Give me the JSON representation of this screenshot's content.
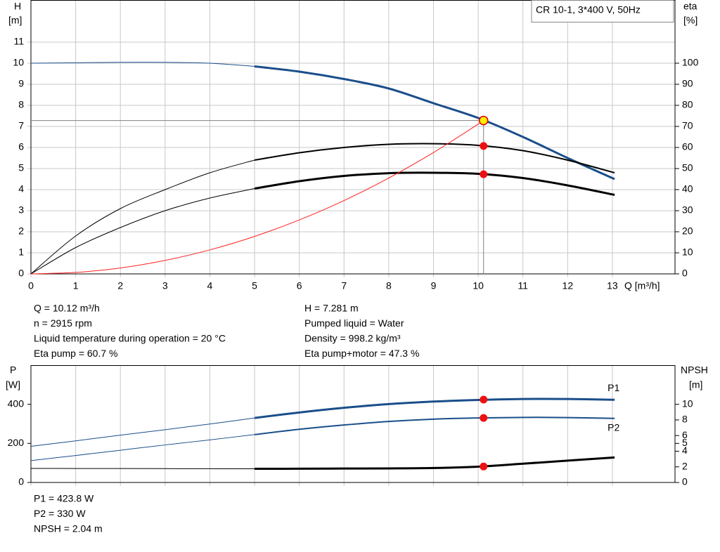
{
  "chart_data": [
    {
      "type": "line",
      "y_label": "H",
      "y_unit": "[m]",
      "y2_label": "eta",
      "y2_unit": "[%]",
      "x_label": "Q [m³/h]",
      "box_text": "CR 10-1, 3*400 V, 50Hz",
      "xlim": [
        0,
        14.4
      ],
      "xticks": [
        0,
        1,
        2,
        3,
        4,
        5,
        6,
        7,
        8,
        9,
        10,
        11,
        12,
        13
      ],
      "ylim": [
        0,
        13
      ],
      "yticks": [
        0,
        1,
        2,
        3,
        4,
        5,
        6,
        7,
        8,
        9,
        10,
        11
      ],
      "y2lim": [
        0,
        130
      ],
      "y2ticks": [
        0,
        10,
        20,
        30,
        40,
        50,
        60,
        70,
        80,
        90,
        100
      ],
      "grid": true,
      "x": [
        0,
        1,
        2,
        3,
        4,
        5,
        6,
        7,
        8,
        9,
        10,
        11,
        12,
        13.05
      ],
      "series": [
        {
          "color": "#1a4e8a",
          "width": 3,
          "values": [
            10.0,
            10.02,
            10.04,
            10.04,
            10.0,
            9.85,
            9.6,
            9.25,
            8.8,
            8.1,
            7.4,
            6.5,
            5.5,
            4.5
          ]
        },
        {
          "color": "#000000",
          "width": 2,
          "axis": "y2",
          "values": [
            0,
            18,
            31,
            40,
            48,
            54,
            57.5,
            60,
            61.5,
            61.8,
            61,
            58.5,
            54,
            48
          ]
        },
        {
          "color": "#000000",
          "width": 3,
          "axis": "y2",
          "values": [
            0,
            12.5,
            22,
            30,
            36,
            40.5,
            44,
            46.5,
            47.8,
            48,
            47.5,
            45.5,
            42,
            37.5
          ]
        },
        {
          "color": "#ff2020",
          "width": 1,
          "x": [
            0,
            1,
            2,
            3,
            4,
            5,
            6,
            7,
            8,
            9,
            10,
            10.12
          ],
          "values": [
            0,
            0.07,
            0.28,
            0.64,
            1.14,
            1.78,
            2.56,
            3.48,
            4.55,
            5.76,
            7.11,
            7.281
          ]
        }
      ],
      "points": [
        {
          "x": 10.12,
          "y": 7.281,
          "color": "#ffee00"
        },
        {
          "x": 10.12,
          "y": 60.7,
          "axis": "y2",
          "color": "#ee1111"
        },
        {
          "x": 10.12,
          "y": 47.3,
          "axis": "y2",
          "color": "#ee1111"
        }
      ],
      "annotations_left": [
        "Q = 10.12 m³/h",
        "n = 2915 rpm",
        "Liquid temperature during operation = 20 °C",
        "Eta pump = 60.7 %"
      ],
      "annotations_right": [
        "H = 7.281 m",
        "Pumped liquid = Water",
        "Density = 998.2 kg/m³",
        "Eta pump+motor = 47.3 %"
      ]
    },
    {
      "type": "line",
      "y_label": "P",
      "y_unit": "[W]",
      "y2_label": "NPSH",
      "y2_unit": "[m]",
      "xlim": [
        0,
        14.4
      ],
      "xticks": [
        0,
        1,
        2,
        3,
        4,
        5,
        6,
        7,
        8,
        9,
        10,
        11,
        12,
        13
      ],
      "ylim": [
        0,
        600
      ],
      "yticks": [
        0,
        200,
        400
      ],
      "y2lim": [
        0,
        15
      ],
      "y2ticks": [
        0,
        2,
        4,
        5,
        6,
        8,
        10
      ],
      "grid": true,
      "x": [
        0,
        1,
        2,
        3,
        4,
        5,
        6,
        7,
        8,
        9,
        10,
        11,
        12,
        13.05
      ],
      "series": [
        {
          "name": "P1",
          "color": "#1a4e8a",
          "width": 3,
          "values": [
            185,
            213,
            242,
            270,
            299,
            330,
            358,
            382,
            401,
            414,
            422,
            427,
            427,
            423
          ]
        },
        {
          "name": "P2",
          "color": "#1a4e8a",
          "width": 2,
          "values": [
            112,
            138,
            165,
            192,
            218,
            245,
            272,
            294,
            312,
            324,
            330,
            333,
            332,
            328
          ]
        },
        {
          "color": "#000000",
          "width": 3,
          "axis": "y2",
          "values": [
            1.8,
            1.79,
            1.78,
            1.77,
            1.76,
            1.75,
            1.76,
            1.78,
            1.8,
            1.85,
            2.02,
            2.4,
            2.8,
            3.2
          ]
        }
      ],
      "points": [
        {
          "x": 10.12,
          "y": 423.8,
          "color": "#ee1111"
        },
        {
          "x": 10.12,
          "y": 330,
          "color": "#ee1111"
        },
        {
          "x": 10.12,
          "y": 2.04,
          "axis": "y2",
          "color": "#ee1111"
        }
      ],
      "annotations_left": [
        "P1 = 423.8 W",
        "P2 = 330 W",
        "NPSH = 2.04 m"
      ]
    }
  ]
}
